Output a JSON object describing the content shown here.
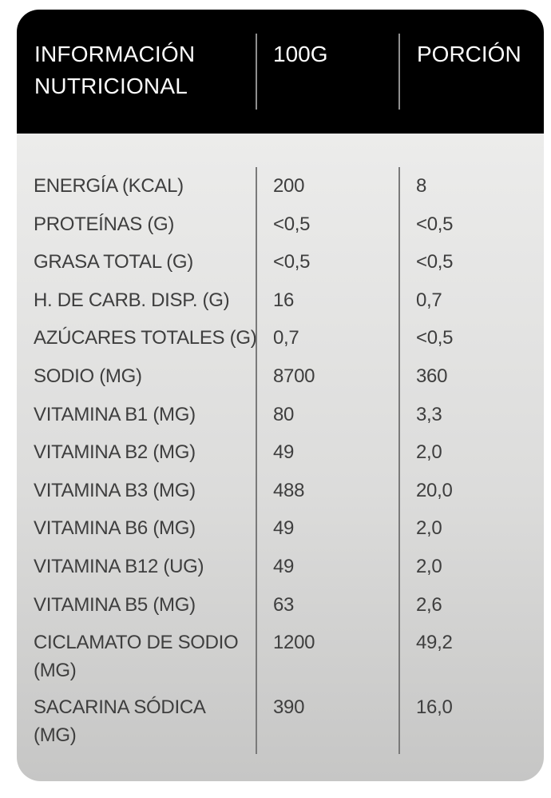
{
  "header": {
    "title_line1": "INFORMACIÓN",
    "title_line2": "NUTRICIONAL",
    "col_100g": "100G",
    "col_porcion": "PORCIÓN"
  },
  "rows": [
    {
      "label": "ENERGÍA (KCAL)",
      "per100g": "200",
      "portion": "8"
    },
    {
      "label": "PROTEÍNAS (G)",
      "per100g": "<0,5",
      "portion": "<0,5"
    },
    {
      "label": "GRASA TOTAL (G)",
      "per100g": "<0,5",
      "portion": "<0,5"
    },
    {
      "label": "H. DE CARB. DISP. (G)",
      "per100g": "16",
      "portion": "0,7"
    },
    {
      "label": "AZÚCARES TOTALES (G)",
      "per100g": "0,7",
      "portion": "<0,5"
    },
    {
      "label": "SODIO (MG)",
      "per100g": "8700",
      "portion": "360"
    },
    {
      "label": "VITAMINA B1 (MG)",
      "per100g": "80",
      "portion": "3,3"
    },
    {
      "label": "VITAMINA B2 (MG)",
      "per100g": "49",
      "portion": "2,0"
    },
    {
      "label": "VITAMINA B3 (MG)",
      "per100g": "488",
      "portion": "20,0"
    },
    {
      "label": "VITAMINA B6 (MG)",
      "per100g": "49",
      "portion": "2,0"
    },
    {
      "label": "VITAMINA B12 (UG)",
      "per100g": "49",
      "portion": "2,0"
    },
    {
      "label": "VITAMINA B5 (MG)",
      "per100g": "63",
      "portion": "2,6"
    },
    {
      "label": "CICLAMATO DE SODIO\n(MG)",
      "per100g": "1200",
      "portion": "49,2"
    },
    {
      "label": "SACARINA SÓDICA\n(MG)",
      "per100g": "390",
      "portion": "16,0"
    }
  ],
  "colors": {
    "header_bg": "#000000",
    "header_text": "#fcfcfc",
    "header_divider": "#8f8f8f",
    "body_gradient_top": "#ececeb",
    "body_gradient_bottom": "#c6c6c5",
    "body_divider": "#7a7a7a",
    "body_text": "#3e3e3e",
    "page_bg": "#ffffff"
  }
}
